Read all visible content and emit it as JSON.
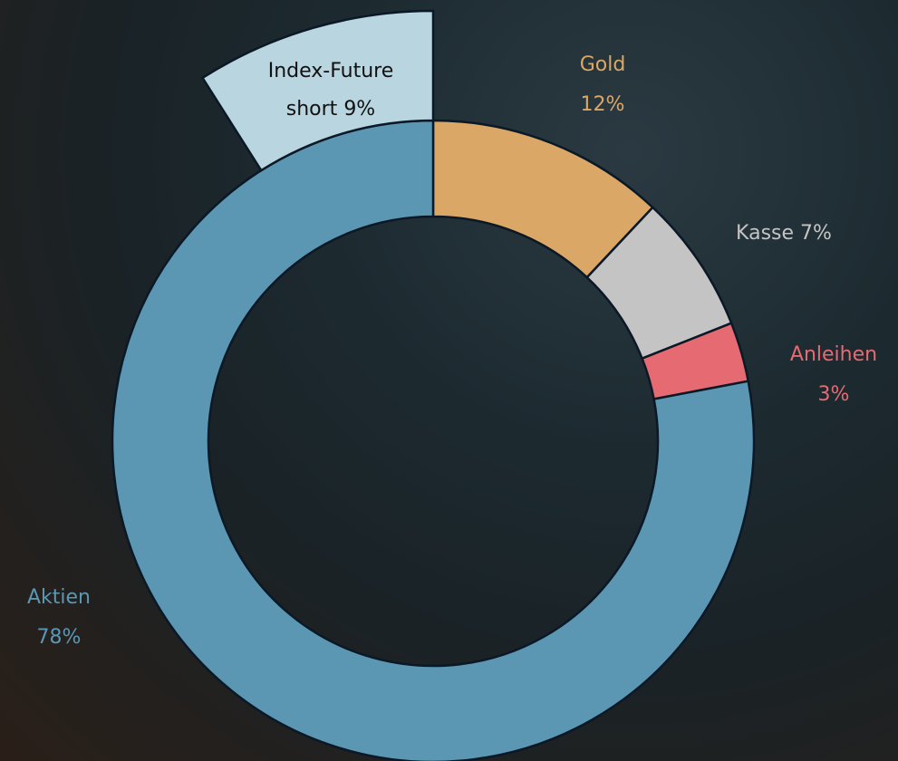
{
  "chart_data": {
    "type": "pie",
    "categories": [
      "Gold",
      "Kasse",
      "Anleihen",
      "Aktien",
      "Index-Future short"
    ],
    "values": [
      12,
      7,
      3,
      78,
      9
    ],
    "value_labels": [
      "12%",
      "7%",
      "3%",
      "78%",
      "9%"
    ],
    "colors": [
      "#dba767",
      "#c4c4c4",
      "#e66a72",
      "#5b97b3",
      "#b8d5e0"
    ],
    "outer": [
      false,
      false,
      false,
      false,
      true
    ]
  }
}
